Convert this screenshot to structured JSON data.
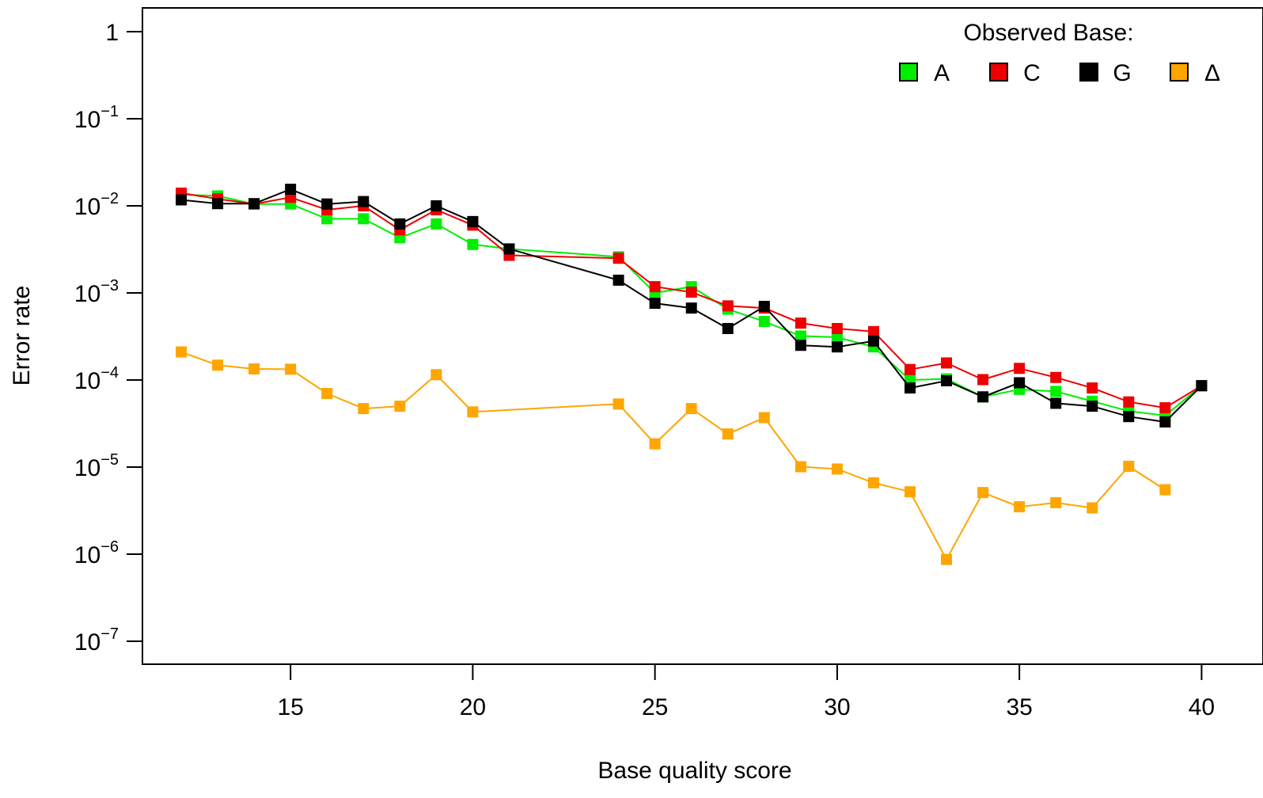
{
  "chart_data": {
    "type": "line",
    "title": "",
    "xlabel": "Base quality score",
    "ylabel": "Error rate",
    "x_scale": "linear",
    "y_scale": "log",
    "xlim": [
      11.4,
      41
    ],
    "ylim": [
      5e-08,
      2
    ],
    "x_ticks": [
      15,
      20,
      25,
      30,
      35,
      40
    ],
    "y_ticks": [
      {
        "value": 1,
        "base": "1",
        "exp": ""
      },
      {
        "value": 0.1,
        "base": "10",
        "exp": "−1"
      },
      {
        "value": 0.01,
        "base": "10",
        "exp": "−2"
      },
      {
        "value": 0.001,
        "base": "10",
        "exp": "−3"
      },
      {
        "value": 0.0001,
        "base": "10",
        "exp": "−4"
      },
      {
        "value": 1e-05,
        "base": "10",
        "exp": "−5"
      },
      {
        "value": 1e-06,
        "base": "10",
        "exp": "−6"
      },
      {
        "value": 1e-07,
        "base": "10",
        "exp": "−7"
      }
    ],
    "grid": false,
    "legend": {
      "title": "Observed Base:",
      "position": "top-right"
    },
    "series": [
      {
        "name": "A",
        "color": "#00ee00",
        "points": [
          [
            12,
            0.0135
          ],
          [
            13,
            0.013
          ],
          [
            14,
            0.0105
          ],
          [
            15,
            0.0105
          ],
          [
            16,
            0.0071
          ],
          [
            17,
            0.0071
          ],
          [
            18,
            0.0043
          ],
          [
            19,
            0.0062
          ],
          [
            20,
            0.0036
          ],
          [
            21,
            0.0032
          ],
          [
            24,
            0.0026
          ],
          [
            25,
            0.001
          ],
          [
            26,
            0.00118
          ],
          [
            27,
            0.00065
          ],
          [
            28,
            0.00047
          ],
          [
            29,
            0.00032
          ],
          [
            30,
            0.00031
          ],
          [
            31,
            0.00024
          ],
          [
            32,
            0.0001
          ],
          [
            33,
            0.000103
          ],
          [
            34,
            6.4e-05
          ],
          [
            35,
            7.8e-05
          ],
          [
            36,
            7.4e-05
          ],
          [
            37,
            5.7e-05
          ],
          [
            38,
            4.4e-05
          ],
          [
            39,
            3.9e-05
          ],
          [
            40,
            8.6e-05
          ]
        ]
      },
      {
        "name": "C",
        "color": "#ee0000",
        "points": [
          [
            12,
            0.014
          ],
          [
            13,
            0.012
          ],
          [
            14,
            0.0105
          ],
          [
            15,
            0.0125
          ],
          [
            16,
            0.009
          ],
          [
            17,
            0.01
          ],
          [
            18,
            0.0053
          ],
          [
            19,
            0.009
          ],
          [
            20,
            0.006
          ],
          [
            21,
            0.0027
          ],
          [
            24,
            0.0025
          ],
          [
            25,
            0.00118
          ],
          [
            26,
            0.00102
          ],
          [
            27,
            0.00071
          ],
          [
            28,
            0.00067
          ],
          [
            29,
            0.00045
          ],
          [
            30,
            0.00039
          ],
          [
            31,
            0.00036
          ],
          [
            32,
            0.000132
          ],
          [
            33,
            0.000157
          ],
          [
            34,
            0.000101
          ],
          [
            35,
            0.000136
          ],
          [
            36,
            0.000107
          ],
          [
            37,
            8.1e-05
          ],
          [
            38,
            5.6e-05
          ],
          [
            39,
            4.8e-05
          ],
          [
            40,
            8.6e-05
          ]
        ]
      },
      {
        "name": "G",
        "color": "#000000",
        "points": [
          [
            12,
            0.0117
          ],
          [
            13,
            0.0106
          ],
          [
            14,
            0.0106
          ],
          [
            15,
            0.0155
          ],
          [
            16,
            0.0105
          ],
          [
            17,
            0.0112
          ],
          [
            18,
            0.0062
          ],
          [
            19,
            0.01
          ],
          [
            20,
            0.0066
          ],
          [
            21,
            0.0032
          ],
          [
            24,
            0.0014
          ],
          [
            25,
            0.00076
          ],
          [
            26,
            0.00067
          ],
          [
            27,
            0.00039
          ],
          [
            28,
            0.0007
          ],
          [
            29,
            0.00025
          ],
          [
            30,
            0.00024
          ],
          [
            31,
            0.00028
          ],
          [
            32,
            8.1e-05
          ],
          [
            33,
            9.8e-05
          ],
          [
            34,
            6.4e-05
          ],
          [
            35,
            9.3e-05
          ],
          [
            36,
            5.4e-05
          ],
          [
            37,
            5e-05
          ],
          [
            38,
            3.8e-05
          ],
          [
            39,
            3.3e-05
          ],
          [
            40,
            8.6e-05
          ]
        ]
      },
      {
        "name": "Δ",
        "color": "#ffa500",
        "points": [
          [
            12,
            0.00021
          ],
          [
            13,
            0.000148
          ],
          [
            14,
            0.000134
          ],
          [
            15,
            0.000133
          ],
          [
            16,
            7e-05
          ],
          [
            17,
            4.7e-05
          ],
          [
            18,
            5e-05
          ],
          [
            19,
            0.000115
          ],
          [
            20,
            4.3e-05
          ],
          [
            24,
            5.3e-05
          ],
          [
            25,
            1.85e-05
          ],
          [
            26,
            4.7e-05
          ],
          [
            27,
            2.4e-05
          ],
          [
            28,
            3.7e-05
          ],
          [
            29,
            1.01e-05
          ],
          [
            30,
            9.5e-06
          ],
          [
            31,
            6.6e-06
          ],
          [
            32,
            5.2e-06
          ],
          [
            33,
            8.7e-07
          ],
          [
            34,
            5.1e-06
          ],
          [
            35,
            3.5e-06
          ],
          [
            36,
            3.9e-06
          ],
          [
            37,
            3.4e-06
          ],
          [
            38,
            1.02e-05
          ],
          [
            39,
            5.5e-06
          ]
        ]
      }
    ]
  }
}
